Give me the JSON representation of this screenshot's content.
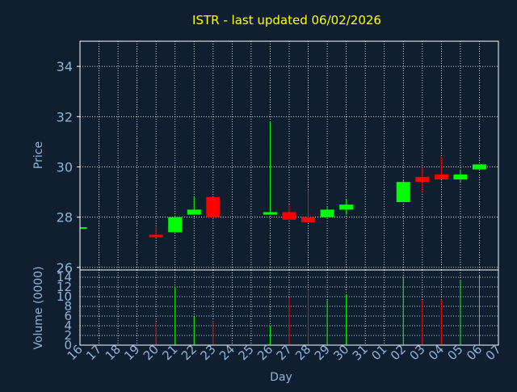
{
  "chart_data": [
    {
      "type": "candlestick",
      "title": "ISTR - last updated 06/02/2026",
      "ylabel": "Price",
      "ylim": [
        25.9,
        35.0
      ],
      "yticks": [
        26,
        28,
        30,
        32,
        34
      ],
      "grid": true,
      "colors": {
        "up": "#00ff00",
        "down": "#ff0000",
        "text": "#8fb3d9",
        "title": "#ffff00",
        "grid": "#ffffff",
        "frame": "#ffffff"
      },
      "candles": [
        {
          "day": "16",
          "open": 27.6,
          "close": 27.6,
          "high": 27.6,
          "low": 27.6
        },
        {
          "day": "20",
          "open": 27.3,
          "close": 27.2,
          "high": 27.6,
          "low": 27.2
        },
        {
          "day": "21",
          "open": 27.4,
          "close": 28.0,
          "high": 28.0,
          "low": 27.4
        },
        {
          "day": "22",
          "open": 28.1,
          "close": 28.3,
          "high": 28.8,
          "low": 28.1
        },
        {
          "day": "23",
          "open": 28.8,
          "close": 28.0,
          "high": 28.8,
          "low": 28.0
        },
        {
          "day": "26",
          "open": 28.1,
          "close": 28.2,
          "high": 31.8,
          "low": 28.1
        },
        {
          "day": "27",
          "open": 28.2,
          "close": 27.9,
          "high": 28.5,
          "low": 27.9
        },
        {
          "day": "28",
          "open": 28.0,
          "close": 27.8,
          "high": 29.1,
          "low": 27.8
        },
        {
          "day": "29",
          "open": 28.0,
          "close": 28.3,
          "high": 28.4,
          "low": 28.0
        },
        {
          "day": "30",
          "open": 28.3,
          "close": 28.5,
          "high": 28.7,
          "low": 28.1
        },
        {
          "day": "02",
          "open": 28.6,
          "close": 29.4,
          "high": 29.5,
          "low": 28.6
        },
        {
          "day": "03",
          "open": 29.6,
          "close": 29.4,
          "high": 30.0,
          "low": 29.0
        },
        {
          "day": "04",
          "open": 29.7,
          "close": 29.5,
          "high": 30.4,
          "low": 29.5
        },
        {
          "day": "05",
          "open": 29.5,
          "close": 29.7,
          "high": 29.9,
          "low": 29.4
        },
        {
          "day": "06",
          "open": 29.9,
          "close": 30.1,
          "high": 30.1,
          "low": 29.9
        }
      ]
    },
    {
      "type": "bar",
      "ylabel": "Volume (0000)",
      "xlabel": "Day",
      "ylim": [
        0,
        15.5
      ],
      "yticks": [
        0,
        2,
        4,
        6,
        8,
        10,
        12,
        14
      ],
      "grid": true,
      "categories": [
        "16",
        "17",
        "18",
        "19",
        "20",
        "21",
        "22",
        "23",
        "24",
        "25",
        "26",
        "27",
        "28",
        "29",
        "30",
        "31",
        "01",
        "02",
        "03",
        "04",
        "05",
        "06",
        "07"
      ],
      "bars": [
        {
          "day": "20",
          "value": 4.8,
          "dir": "down"
        },
        {
          "day": "21",
          "value": 12.0,
          "dir": "up"
        },
        {
          "day": "22",
          "value": 5.9,
          "dir": "up"
        },
        {
          "day": "23",
          "value": 5.0,
          "dir": "down"
        },
        {
          "day": "26",
          "value": 4.0,
          "dir": "up"
        },
        {
          "day": "27",
          "value": 9.8,
          "dir": "down"
        },
        {
          "day": "28",
          "value": 11.2,
          "dir": "down"
        },
        {
          "day": "29",
          "value": 9.3,
          "dir": "up"
        },
        {
          "day": "30",
          "value": 10.5,
          "dir": "up"
        },
        {
          "day": "02",
          "value": 14.1,
          "dir": "up"
        },
        {
          "day": "03",
          "value": 9.3,
          "dir": "down"
        },
        {
          "day": "04",
          "value": 9.4,
          "dir": "down"
        },
        {
          "day": "05",
          "value": 13.5,
          "dir": "up"
        },
        {
          "day": "06",
          "value": 14.4,
          "dir": "up"
        }
      ]
    }
  ]
}
